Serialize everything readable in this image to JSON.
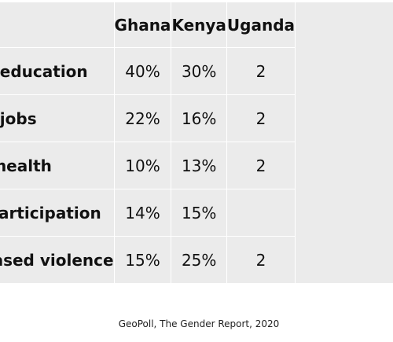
{
  "chart_data": {
    "type": "table",
    "columns": [
      "",
      "Ghana",
      "Kenya",
      "Uganda"
    ],
    "rows": [
      {
        "label": "Access to education",
        "values": [
          "40%",
          "30%",
          "2"
        ]
      },
      {
        "label": "Access to jobs",
        "values": [
          "22%",
          "16%",
          "2"
        ]
      },
      {
        "label": "Maternal health",
        "values": [
          "10%",
          "13%",
          "2"
        ]
      },
      {
        "label": "Political participation",
        "values": [
          "14%",
          "15%",
          ""
        ]
      },
      {
        "label": "Gender-based violence",
        "values": [
          "15%",
          "25%",
          "2"
        ]
      }
    ],
    "source": "GeoPoll, The Gender Report, 2020"
  }
}
